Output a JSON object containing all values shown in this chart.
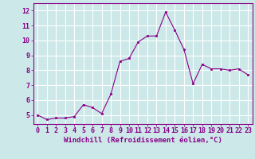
{
  "x": [
    0,
    1,
    2,
    3,
    4,
    5,
    6,
    7,
    8,
    9,
    10,
    11,
    12,
    13,
    14,
    15,
    16,
    17,
    18,
    19,
    20,
    21,
    22,
    23
  ],
  "y": [
    5.0,
    4.7,
    4.8,
    4.8,
    4.9,
    5.7,
    5.5,
    5.1,
    6.4,
    8.6,
    8.8,
    9.9,
    10.3,
    10.3,
    11.9,
    10.7,
    9.4,
    7.1,
    8.4,
    8.1,
    8.1,
    8.0,
    8.1,
    7.7
  ],
  "xlabel": "Windchill (Refroidissement éolien,°C)",
  "ylabel_ticks": [
    5,
    6,
    7,
    8,
    9,
    10,
    11,
    12
  ],
  "ylim": [
    4.4,
    12.5
  ],
  "xlim": [
    -0.5,
    23.5
  ],
  "line_color": "#880088",
  "marker_color": "#880088",
  "bg_color": "#cce8e8",
  "grid_color": "#ffffff",
  "xlabel_fontsize": 6.5,
  "tick_fontsize": 6.0
}
